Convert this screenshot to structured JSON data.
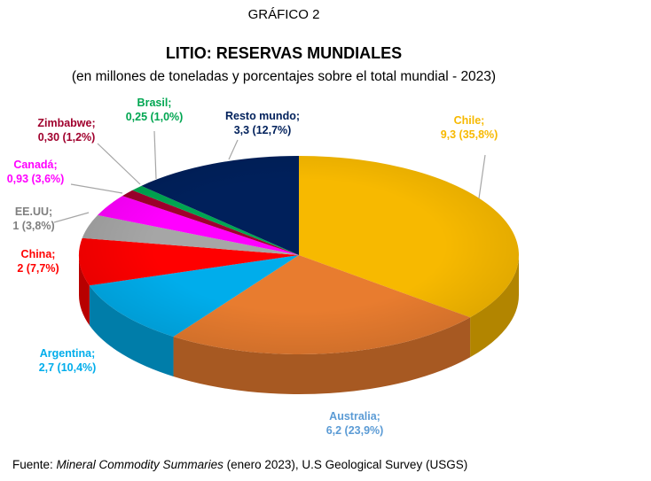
{
  "figure_label": "GRÁFICO 2",
  "colors": {
    "Chile": "#f7b900",
    "Australia": "#e87c2f",
    "Argentina": "#00adeb",
    "China": "#ff0000",
    "EE.UU": "#a6a6a6",
    "Canadá": "#ff00ff",
    "Zimbabwe": "#a0002d",
    "Brasil": "#00a651",
    "Resto mundo": "#00205b"
  },
  "chart_data": {
    "type": "pie",
    "title": "LITIO: RESERVAS MUNDIALES",
    "subtitle": "(en millones de toneladas y porcentajes sobre el total mundial - 2023)",
    "unit": "millones de toneladas",
    "slices": [
      {
        "name": "Chile",
        "value": 9.3,
        "percent": 35.8,
        "label_line1": "Chile;",
        "label_line2": "9,3 (35,8%)"
      },
      {
        "name": "Australia",
        "value": 6.2,
        "percent": 23.9,
        "label_line1": "Australia;",
        "label_line2": "6,2 (23,9%)"
      },
      {
        "name": "Argentina",
        "value": 2.7,
        "percent": 10.4,
        "label_line1": "Argentina;",
        "label_line2": "2,7 (10,4%)"
      },
      {
        "name": "China",
        "value": 2,
        "percent": 7.7,
        "label_line1": "China;",
        "label_line2": "2 (7,7%)"
      },
      {
        "name": "EE.UU",
        "value": 1,
        "percent": 3.8,
        "label_line1": "EE.UU;",
        "label_line2": "1 (3,8%)"
      },
      {
        "name": "Canadá",
        "value": 0.93,
        "percent": 3.6,
        "label_line1": "Canadá;",
        "label_line2": "0,93 (3,6%)"
      },
      {
        "name": "Zimbabwe",
        "value": 0.3,
        "percent": 1.2,
        "label_line1": "Zimbabwe;",
        "label_line2": "0,30 (1,2%)"
      },
      {
        "name": "Brasil",
        "value": 0.25,
        "percent": 1.0,
        "label_line1": "Brasil;",
        "label_line2": "0,25 (1,0%)"
      },
      {
        "name": "Resto mundo",
        "value": 3.3,
        "percent": 12.7,
        "label_line1": "Resto mundo;",
        "label_line2": "3,3 (12,7%)"
      }
    ]
  },
  "source": {
    "prefix": "Fuente: ",
    "publication": "Mineral Commodity Summaries",
    "suffix": " (enero 2023), U.S Geological Survey (USGS)"
  }
}
